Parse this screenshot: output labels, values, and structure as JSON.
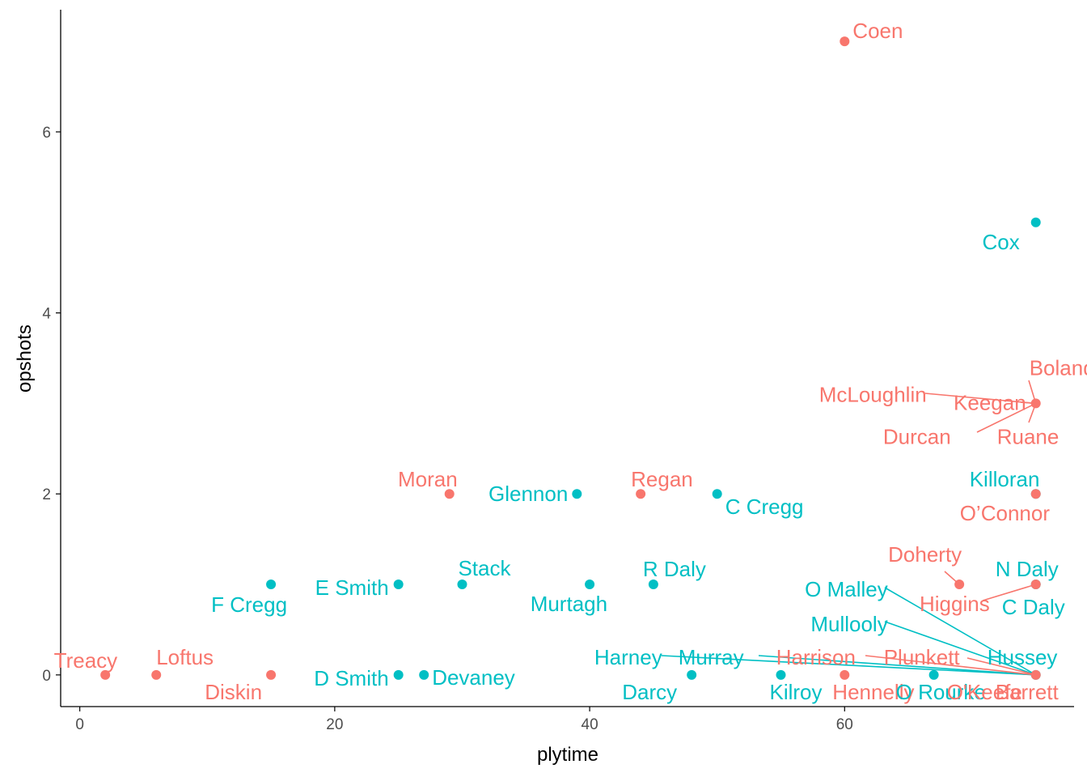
{
  "colors": {
    "group_a": "#F8766D",
    "group_b": "#00BFC4",
    "axis": "#000000",
    "tick_text": "#4d4d4d"
  },
  "chart_data": {
    "type": "scatter",
    "title": "",
    "xlabel": "plytime",
    "ylabel": "opshots",
    "xlim": [
      -1.5,
      78
    ],
    "ylim": [
      -0.35,
      7.35
    ],
    "x_ticks": [
      0,
      20,
      40,
      60
    ],
    "y_ticks": [
      0,
      2,
      4,
      6
    ],
    "grid": false,
    "legend": "none",
    "points": [
      {
        "label": "Coen",
        "x": 60,
        "y": 7,
        "group": "a"
      },
      {
        "label": "Cox",
        "x": 75,
        "y": 5,
        "group": "b"
      },
      {
        "label": "Boland",
        "x": 75,
        "y": 3,
        "group": "a"
      },
      {
        "label": "McLoughlin",
        "x": 75,
        "y": 3,
        "group": "a"
      },
      {
        "label": "Keegan",
        "x": 75,
        "y": 3,
        "group": "a"
      },
      {
        "label": "Durcan",
        "x": 75,
        "y": 3,
        "group": "a"
      },
      {
        "label": "Ruane",
        "x": 75,
        "y": 3,
        "group": "a"
      },
      {
        "label": "Moran",
        "x": 29,
        "y": 2,
        "group": "a"
      },
      {
        "label": "Glennon",
        "x": 39,
        "y": 2,
        "group": "b"
      },
      {
        "label": "Regan",
        "x": 44,
        "y": 2,
        "group": "a"
      },
      {
        "label": "C Cregg",
        "x": 50,
        "y": 2,
        "group": "b"
      },
      {
        "label": "Killoran",
        "x": 75,
        "y": 2,
        "group": "b"
      },
      {
        "label": "O’Connor",
        "x": 75,
        "y": 2,
        "group": "a"
      },
      {
        "label": "F Cregg",
        "x": 15,
        "y": 1,
        "group": "b"
      },
      {
        "label": "E Smith",
        "x": 25,
        "y": 1,
        "group": "b"
      },
      {
        "label": "Stack",
        "x": 30,
        "y": 1,
        "group": "b"
      },
      {
        "label": "Murtagh",
        "x": 40,
        "y": 1,
        "group": "b"
      },
      {
        "label": "R Daly",
        "x": 45,
        "y": 1,
        "group": "b"
      },
      {
        "label": "Doherty",
        "x": 69,
        "y": 1,
        "group": "a"
      },
      {
        "label": "N Daly",
        "x": 75,
        "y": 1,
        "group": "b"
      },
      {
        "label": "Higgins",
        "x": 75,
        "y": 1,
        "group": "a"
      },
      {
        "label": "C Daly",
        "x": 75,
        "y": 1,
        "group": "b"
      },
      {
        "label": "Treacy",
        "x": 2,
        "y": 0,
        "group": "a"
      },
      {
        "label": "Loftus",
        "x": 6,
        "y": 0,
        "group": "a"
      },
      {
        "label": "Diskin",
        "x": 15,
        "y": 0,
        "group": "a"
      },
      {
        "label": "D Smith",
        "x": 25,
        "y": 0,
        "group": "b"
      },
      {
        "label": "Devaney",
        "x": 27,
        "y": 0,
        "group": "b"
      },
      {
        "label": "Darcy",
        "x": 48,
        "y": 0,
        "group": "b"
      },
      {
        "label": "Kilroy",
        "x": 55,
        "y": 0,
        "group": "b"
      },
      {
        "label": "Hennelly",
        "x": 60,
        "y": 0,
        "group": "a"
      },
      {
        "label": "O Rourke",
        "x": 67,
        "y": 0,
        "group": "b"
      },
      {
        "label": "O Malley",
        "x": 75,
        "y": 0,
        "group": "b"
      },
      {
        "label": "Mullooly",
        "x": 75,
        "y": 0,
        "group": "b"
      },
      {
        "label": "Harney",
        "x": 75,
        "y": 0,
        "group": "b"
      },
      {
        "label": "Murray",
        "x": 75,
        "y": 0,
        "group": "b"
      },
      {
        "label": "Harrison",
        "x": 75,
        "y": 0,
        "group": "a"
      },
      {
        "label": "Plunkett",
        "x": 75,
        "y": 0,
        "group": "a"
      },
      {
        "label": "Hussey",
        "x": 75,
        "y": 0,
        "group": "b"
      },
      {
        "label": "O'Keefe",
        "x": 75,
        "y": 0,
        "group": "a"
      },
      {
        "label": "Barrett",
        "x": 75,
        "y": 0,
        "group": "a"
      }
    ]
  }
}
